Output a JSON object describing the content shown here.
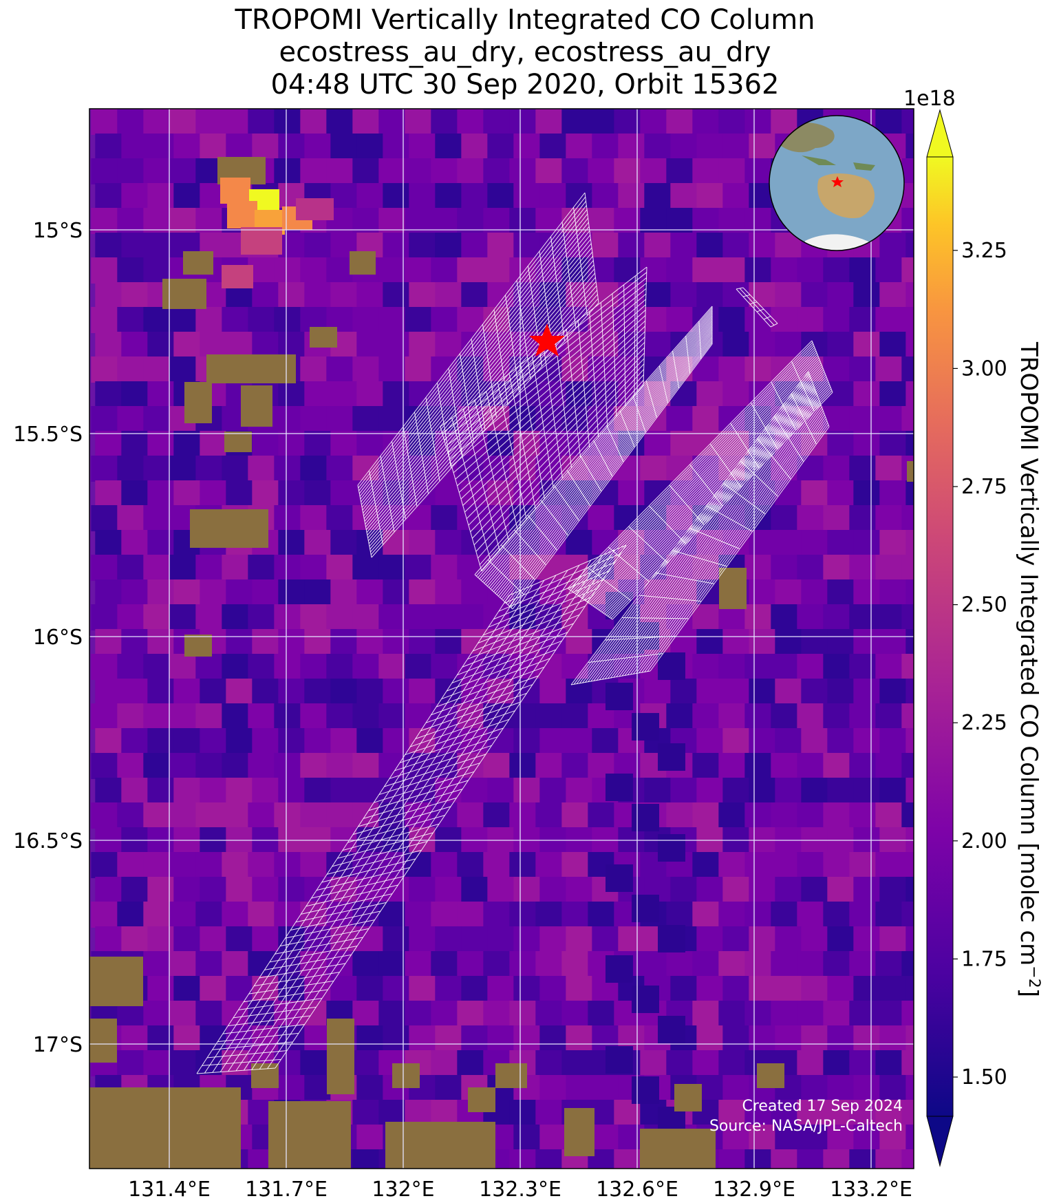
{
  "title": {
    "line1": "TROPOMI Vertically Integrated CO Column",
    "line2": "ecostress_au_dry, ecostress_au_dry",
    "line3": "04:48 UTC 30 Sep 2020, Orbit 15362"
  },
  "map": {
    "lon_ticks": [
      "131.4°E",
      "131.7°E",
      "132°E",
      "132.3°E",
      "132.6°E",
      "132.9°E",
      "133.2°E"
    ],
    "lat_ticks": [
      "15°S",
      "15.5°S",
      "16°S",
      "16.5°S",
      "17°S"
    ],
    "background_color": "#6a14a6",
    "grid_color": "#e6e6ff",
    "footprint_color": "#ffffff",
    "target_marker": {
      "icon": "red-star-icon",
      "color": "#ff0000",
      "lon": 132.37,
      "lat": -15.25
    },
    "inset": {
      "icon": "globe-icon",
      "description_visible": false
    }
  },
  "colorbar": {
    "exponent_label": "1e18",
    "ticks": [
      "1.50",
      "1.75",
      "2.00",
      "2.25",
      "2.50",
      "2.75",
      "3.00",
      "3.25"
    ],
    "label": "TROPOMI Vertically Integrated CO Column [molec cm",
    "label_sup": "−2",
    "label_end": "]",
    "colormap": [
      "#0d0887",
      "#5302a3",
      "#8b0aa5",
      "#b83289",
      "#db5c68",
      "#f48849",
      "#febd2a",
      "#f0f921"
    ]
  },
  "credit": {
    "line1": "Created 17 Sep 2024",
    "line2": "Source: NASA/JPL-Caltech"
  }
}
